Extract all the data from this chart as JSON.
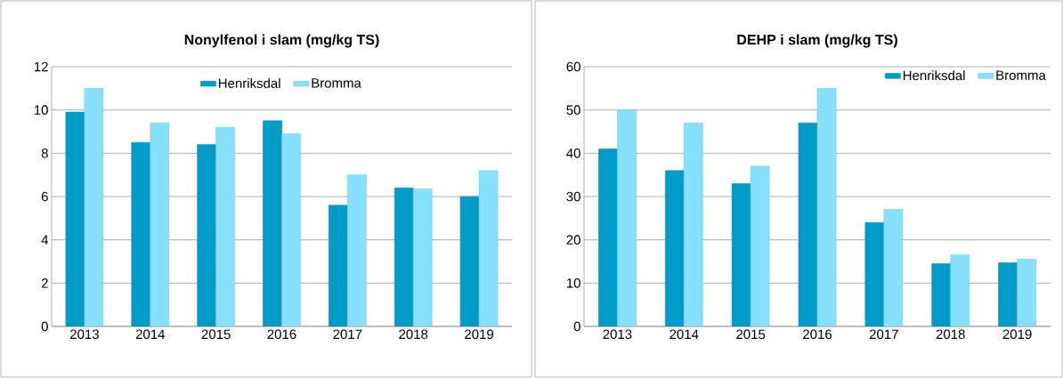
{
  "chart_data": [
    {
      "type": "bar",
      "title": "Nonylfenol i slam (mg/kg TS)",
      "categories": [
        "2013",
        "2014",
        "2015",
        "2016",
        "2017",
        "2018",
        "2019"
      ],
      "series": [
        {
          "name": "Henriksdal",
          "color": "#009cc9",
          "values": [
            9.9,
            8.5,
            8.4,
            9.5,
            5.6,
            6.4,
            6.0
          ]
        },
        {
          "name": "Bromma",
          "color": "#88e0ff",
          "values": [
            11.0,
            9.4,
            9.2,
            8.9,
            7.0,
            6.35,
            7.2
          ]
        }
      ],
      "ylim": [
        0,
        12
      ],
      "yticks": [
        0,
        2,
        4,
        6,
        8,
        10,
        12
      ],
      "grid": "y",
      "legend": "top"
    },
    {
      "type": "bar",
      "title": "DEHP i slam (mg/kg TS)",
      "categories": [
        "2013",
        "2014",
        "2015",
        "2016",
        "2017",
        "2018",
        "2019"
      ],
      "series": [
        {
          "name": "Henriksdal",
          "color": "#009cc9",
          "values": [
            41,
            36,
            33,
            47,
            24,
            14.5,
            14.7
          ]
        },
        {
          "name": "Bromma",
          "color": "#88e0ff",
          "values": [
            50,
            47,
            37,
            55,
            27,
            16.5,
            15.5
          ]
        }
      ],
      "ylim": [
        0,
        60
      ],
      "yticks": [
        0,
        10,
        20,
        30,
        40,
        50,
        60
      ],
      "grid": "y",
      "legend": "top right"
    }
  ]
}
